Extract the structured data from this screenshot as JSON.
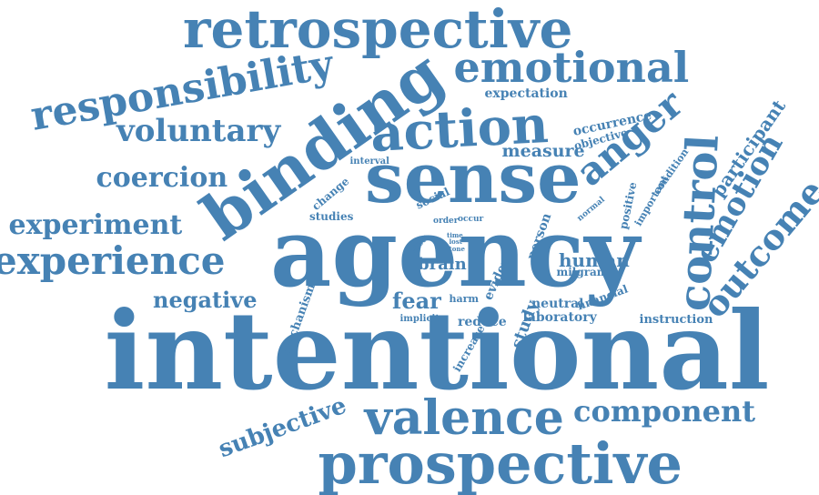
{
  "style": {
    "color": "#4682b4",
    "background": "#ffffff"
  },
  "words": [
    "intentional",
    "agency",
    "sense",
    "binding",
    "action",
    "retrospective",
    "prospective",
    "valence",
    "emotional",
    "responsibility",
    "control",
    "experience",
    "outcome",
    "emotion",
    "anger",
    "voluntary",
    "experiment",
    "coercion",
    "component",
    "subjective",
    "negative",
    "fear",
    "participant",
    "measure",
    "expectation",
    "occurrence",
    "objective",
    "human",
    "brain",
    "study",
    "reduce",
    "laboratory",
    "neutral",
    "financial",
    "instruction",
    "milgram",
    "harm",
    "implicit",
    "increase",
    "evidence",
    "mechanism",
    "loss",
    "person",
    "positive",
    "important",
    "condition",
    "normal",
    "interval",
    "change",
    "social",
    "studies",
    "order",
    "occur",
    "effect",
    "time",
    "lost",
    "tone"
  ]
}
